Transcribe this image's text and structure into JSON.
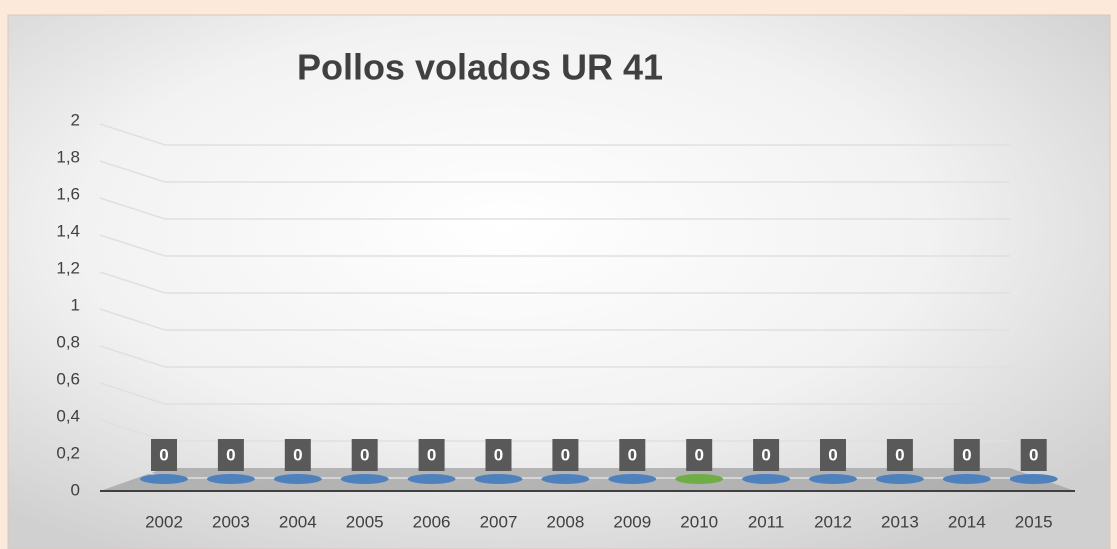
{
  "chart_data": {
    "type": "bar3d",
    "title": "Pollos volados UR 41",
    "categories": [
      "2002",
      "2003",
      "2004",
      "2005",
      "2006",
      "2007",
      "2008",
      "2009",
      "2010",
      "2011",
      "2012",
      "2013",
      "2014",
      "2015"
    ],
    "values": [
      0,
      0,
      0,
      0,
      0,
      0,
      0,
      0,
      0,
      0,
      0,
      0,
      0,
      0
    ],
    "colors": [
      "#4f81bd",
      "#4f81bd",
      "#4f81bd",
      "#4f81bd",
      "#4f81bd",
      "#4f81bd",
      "#4f81bd",
      "#4f81bd",
      "#70ad47",
      "#4f81bd",
      "#4f81bd",
      "#4f81bd",
      "#4f81bd",
      "#4f81bd"
    ],
    "ylim": [
      0,
      2
    ],
    "yticks": [
      0,
      {
        "value": 0.2,
        "label": "0,2"
      },
      {
        "value": 0.4,
        "label": "0,4"
      },
      {
        "value": 0.6,
        "label": "0,6"
      },
      {
        "value": 0.8,
        "label": "0,8"
      },
      1,
      {
        "value": 1.2,
        "label": "1,2"
      },
      {
        "value": 1.4,
        "label": "1,4"
      },
      {
        "value": 1.6,
        "label": "1,6"
      },
      {
        "value": 1.8,
        "label": "1,8"
      },
      2
    ],
    "grid": true
  }
}
